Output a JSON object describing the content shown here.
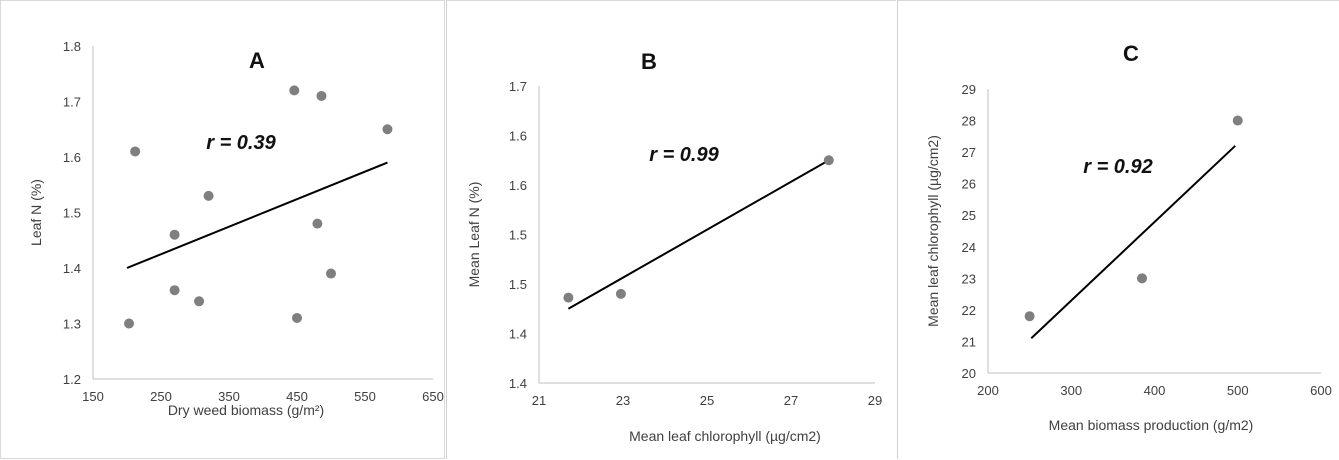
{
  "chart_data": [
    {
      "type": "scatter",
      "panel": "A",
      "annotation": "r = 0.39",
      "xlabel": "Dry weed biomass (g/m²)",
      "ylabel": "Leaf N (%)",
      "xlim": [
        150,
        650
      ],
      "ylim": [
        1.2,
        1.8
      ],
      "x_ticks": [
        "150",
        "250",
        "350",
        "450",
        "550",
        "650"
      ],
      "y_ticks": [
        "1.2",
        "1.3",
        "1.4",
        "1.5",
        "1.6",
        "1.7",
        "1.8"
      ],
      "points": [
        {
          "x": 203,
          "y": 1.3
        },
        {
          "x": 212,
          "y": 1.61
        },
        {
          "x": 270,
          "y": 1.46
        },
        {
          "x": 270,
          "y": 1.36
        },
        {
          "x": 306,
          "y": 1.34
        },
        {
          "x": 320,
          "y": 1.53
        },
        {
          "x": 446,
          "y": 1.72
        },
        {
          "x": 450,
          "y": 1.31
        },
        {
          "x": 480,
          "y": 1.48
        },
        {
          "x": 486,
          "y": 1.71
        },
        {
          "x": 500,
          "y": 1.39
        },
        {
          "x": 583,
          "y": 1.65
        }
      ],
      "trendline": [
        {
          "x": 200,
          "y": 1.4
        },
        {
          "x": 583,
          "y": 1.59
        }
      ]
    },
    {
      "type": "scatter",
      "panel": "B",
      "annotation": "r = 0.99",
      "xlabel": "Mean leaf chlorophyll  (µg/cm2)",
      "ylabel": "Mean Leaf N (%)",
      "xlim": [
        21,
        29
      ],
      "ylim": [
        1.3,
        1.7
      ],
      "x_ticks": [
        "21",
        "23",
        "25",
        "27",
        "29"
      ],
      "y_ticks": [
        "1.4",
        "1.4",
        "1.5",
        "1.5",
        "1.6",
        "1.6",
        "1.7"
      ],
      "points": [
        {
          "x": 21.7,
          "y": 1.415
        },
        {
          "x": 22.95,
          "y": 1.42
        },
        {
          "x": 27.9,
          "y": 1.6
        }
      ],
      "trendline": [
        {
          "x": 21.7,
          "y": 1.4
        },
        {
          "x": 27.9,
          "y": 1.6
        }
      ]
    },
    {
      "type": "scatter",
      "panel": "C",
      "annotation": "r = 0.92",
      "xlabel": "Mean biomass production  (g/m2)",
      "ylabel": "Mean leaf chlorophyll  (µg/cm2)",
      "xlim": [
        200,
        600
      ],
      "ylim": [
        20,
        29
      ],
      "x_ticks": [
        "200",
        "300",
        "400",
        "500",
        "600"
      ],
      "y_ticks": [
        "20",
        "21",
        "22",
        "23",
        "24",
        "25",
        "26",
        "27",
        "28",
        "29"
      ],
      "points": [
        {
          "x": 250,
          "y": 21.8
        },
        {
          "x": 385,
          "y": 23.0
        },
        {
          "x": 500,
          "y": 28.0
        }
      ],
      "trendline": [
        {
          "x": 252,
          "y": 21.1
        },
        {
          "x": 497,
          "y": 27.2
        }
      ]
    }
  ]
}
